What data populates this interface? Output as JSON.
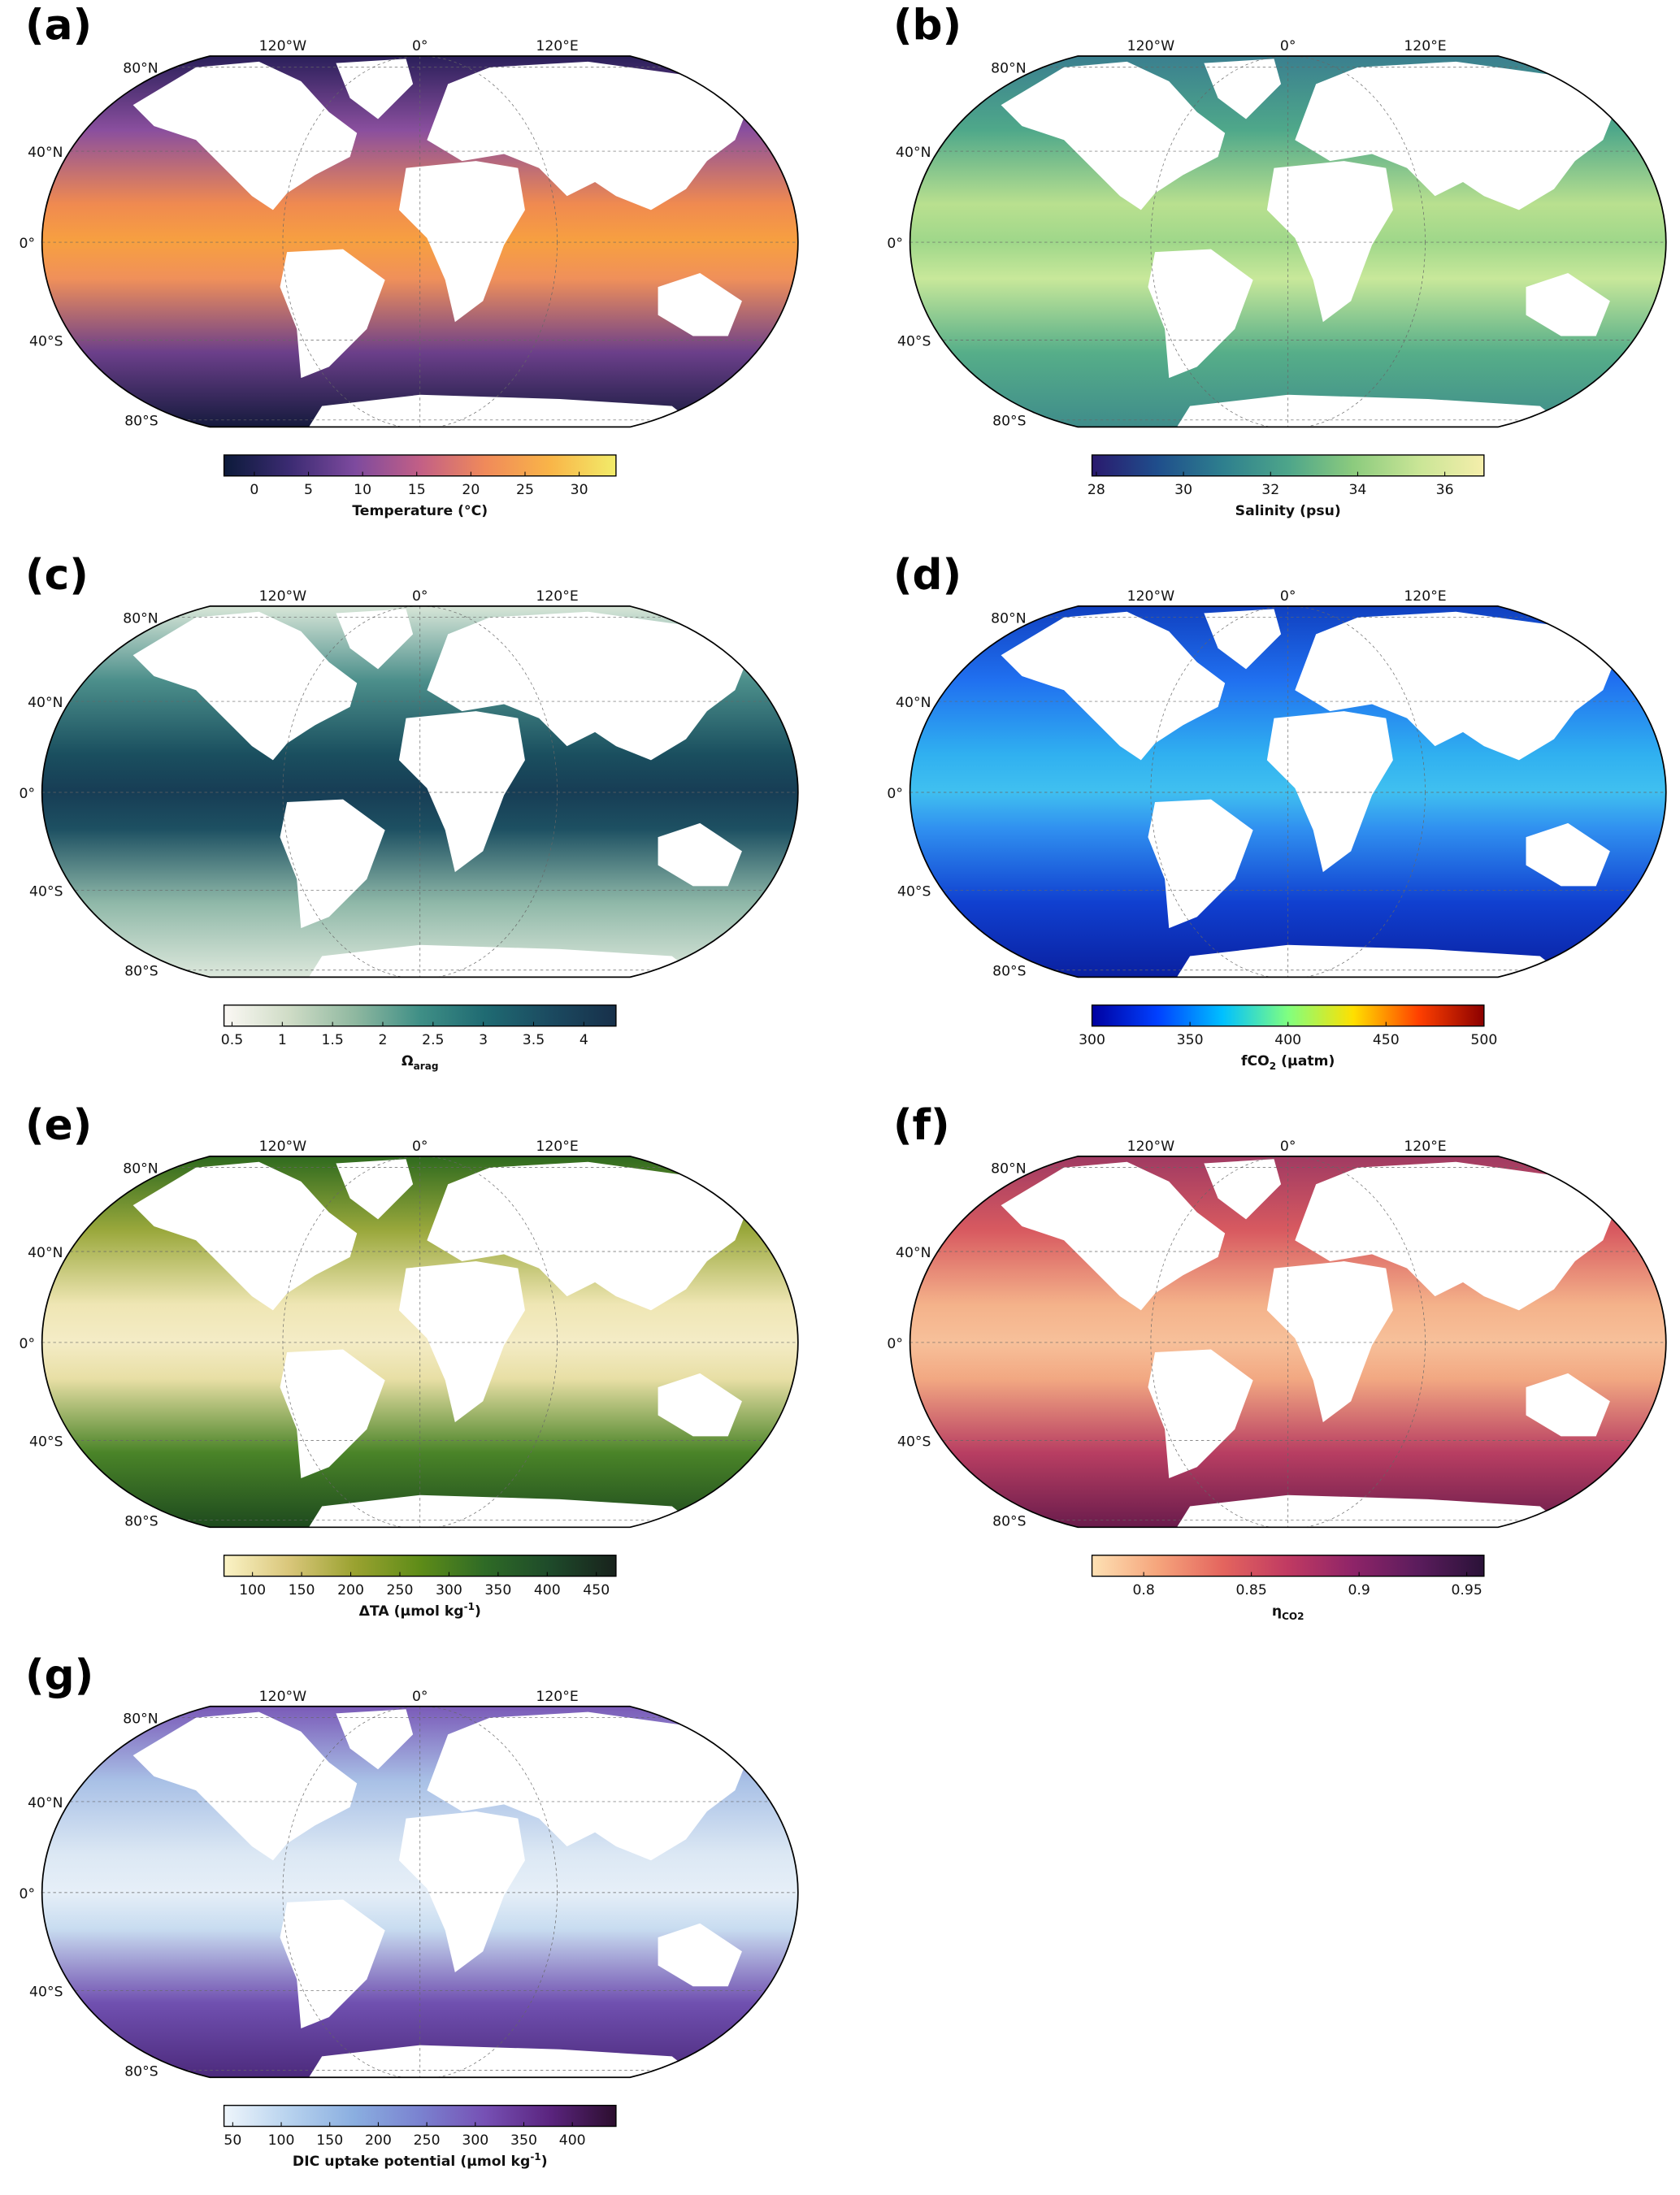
{
  "panels": [
    {
      "label": "(a)",
      "lon_labels": [
        "120°W",
        "0°",
        "120°E"
      ],
      "lat_labels": [
        "80°N",
        "40°N",
        "0°",
        "40°S",
        "80°S"
      ],
      "colorbar": {
        "label": [
          {
            "text": "Temperature (°C)"
          }
        ],
        "lim": [
          -2.8,
          33.4
        ],
        "ticks": [
          0,
          5,
          10,
          15,
          20,
          25,
          30
        ],
        "colormap": [
          "#0c1a3a",
          "#3b2b72",
          "#7d4a9e",
          "#c25f86",
          "#f08a5a",
          "#f9b548",
          "#f2ec6a"
        ]
      }
    },
    {
      "label": "(b)",
      "lon_labels": [
        "120°W",
        "0°",
        "120°E"
      ],
      "lat_labels": [
        "80°N",
        "40°N",
        "0°",
        "40°S",
        "80°S"
      ],
      "colorbar": {
        "label": [
          {
            "text": "Salinity (psu)"
          }
        ],
        "lim": [
          27.9,
          36.9
        ],
        "ticks": [
          28,
          30,
          32,
          34,
          36
        ],
        "colormap": [
          "#2a1a6e",
          "#1f4e8c",
          "#2e7f8e",
          "#4da58a",
          "#8ccb7e",
          "#c9e596",
          "#f5eeab"
        ]
      }
    },
    {
      "label": "(c)",
      "lon_labels": [
        "120°W",
        "0°",
        "120°E"
      ],
      "lat_labels": [
        "80°N",
        "40°N",
        "0°",
        "40°S",
        "80°S"
      ],
      "colorbar": {
        "label": [
          {
            "text": "Ω"
          },
          {
            "text": "arag",
            "baseline": "sub"
          }
        ],
        "lim": [
          0.42,
          4.32
        ],
        "ticks": [
          0.5,
          1,
          1.5,
          2,
          2.5,
          3,
          3.5,
          4
        ],
        "colormap": [
          "#fbf8f4",
          "#cfdcc6",
          "#8fb8a0",
          "#3f8f86",
          "#1f6a72",
          "#1b4a60",
          "#17304a"
        ]
      }
    },
    {
      "label": "(d)",
      "lon_labels": [
        "120°W",
        "0°",
        "120°E"
      ],
      "lat_labels": [
        "80°N",
        "40°N",
        "0°",
        "40°S",
        "80°S"
      ],
      "colorbar": {
        "label": [
          {
            "text": "fCO"
          },
          {
            "text": "2",
            "baseline": "sub"
          },
          {
            "text": " (μatm)"
          }
        ],
        "lim": [
          300,
          500
        ],
        "ticks": [
          300,
          350,
          400,
          450,
          500
        ],
        "colormap": [
          "#0000a0",
          "#0040ff",
          "#00c0ff",
          "#80ff80",
          "#ffe000",
          "#ff4000",
          "#8b0000"
        ]
      }
    },
    {
      "label": "(e)",
      "lon_labels": [
        "120°W",
        "0°",
        "120°E"
      ],
      "lat_labels": [
        "80°N",
        "40°N",
        "0°",
        "40°S",
        "80°S"
      ],
      "colorbar": {
        "label": [
          {
            "text": "ΔTA (μmol kg"
          },
          {
            "text": "-1",
            "baseline": "super"
          },
          {
            "text": ")"
          }
        ],
        "lim": [
          71,
          470
        ],
        "ticks": [
          100,
          150,
          200,
          250,
          300,
          350,
          400,
          450
        ],
        "colormap": [
          "#fbf3c6",
          "#d9c67a",
          "#9aa230",
          "#5e8c18",
          "#2e6a26",
          "#1e4a2a",
          "#18221c"
        ]
      }
    },
    {
      "label": "(f)",
      "lon_labels": [
        "120°W",
        "0°",
        "120°E"
      ],
      "lat_labels": [
        "80°N",
        "40°N",
        "0°",
        "40°S",
        "80°S"
      ],
      "colorbar": {
        "label": [
          {
            "text": "η"
          },
          {
            "text": "CO2",
            "baseline": "sub"
          }
        ],
        "lim": [
          0.776,
          0.958
        ],
        "ticks": [
          0.8,
          0.85,
          0.9,
          0.95
        ],
        "colormap": [
          "#fde1b4",
          "#f6a57c",
          "#e4655e",
          "#c03a62",
          "#8e2468",
          "#5a1c5c",
          "#2a1238"
        ]
      }
    },
    {
      "label": "(g)",
      "lon_labels": [
        "120°W",
        "0°",
        "120°E"
      ],
      "lat_labels": [
        "80°N",
        "40°N",
        "0°",
        "40°S",
        "80°S"
      ],
      "colorbar": {
        "label": [
          {
            "text": "DIC uptake potential (μmol kg"
          },
          {
            "text": "-1",
            "baseline": "super"
          },
          {
            "text": ")"
          }
        ],
        "lim": [
          41,
          445
        ],
        "ticks": [
          50,
          100,
          150,
          200,
          250,
          300,
          350,
          400
        ],
        "colormap": [
          "#eef5fb",
          "#b7d2ee",
          "#8aaee0",
          "#7a82d0",
          "#7650b4",
          "#5a247e",
          "#2c0e2e"
        ]
      }
    }
  ]
}
